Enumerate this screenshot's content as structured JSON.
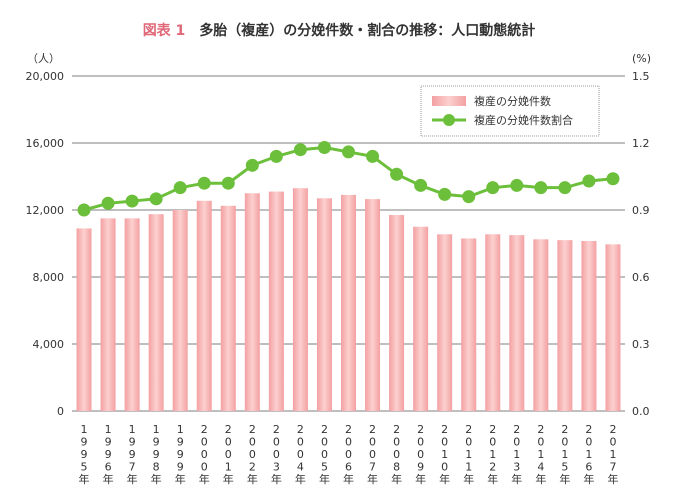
{
  "chart_data": {
    "type": "bar+line",
    "title_prefix": "図表 1",
    "title": "多胎（複産）の分娩件数・割合の推移：人口動態統計",
    "y_left_unit": "（人）",
    "y_right_unit": "(%)",
    "ylim_left": [
      0,
      20000
    ],
    "ylim_right": [
      0,
      1.5
    ],
    "y_left_ticks": [
      "0",
      "4,000",
      "8,000",
      "12,000",
      "16,000",
      "20,000"
    ],
    "y_right_ticks": [
      "0.0",
      "0.3",
      "0.6",
      "0.9",
      "1.2",
      "1.5"
    ],
    "grid": true,
    "legend_position": "top-right",
    "categories": [
      "1995年",
      "1996年",
      "1997年",
      "1998年",
      "1999年",
      "2000年",
      "2001年",
      "2002年",
      "2003年",
      "2004年",
      "2005年",
      "2006年",
      "2007年",
      "2008年",
      "2009年",
      "2010年",
      "2011年",
      "2012年",
      "2013年",
      "2014年",
      "2015年",
      "2016年",
      "2017年"
    ],
    "series": [
      {
        "name": "複産の分娩件数",
        "type": "bar",
        "axis": "left",
        "color": "#f4a6a6",
        "values": [
          10900,
          11500,
          11500,
          11750,
          12000,
          12550,
          12250,
          13000,
          13100,
          13300,
          12700,
          12900,
          12650,
          11700,
          11000,
          10550,
          10300,
          10550,
          10500,
          10250,
          10200,
          10150,
          9950
        ]
      },
      {
        "name": "複産の分娩件数割合",
        "type": "line",
        "axis": "right",
        "color": "#6cbf3a",
        "values": [
          0.9,
          0.93,
          0.94,
          0.95,
          1.0,
          1.02,
          1.02,
          1.1,
          1.14,
          1.17,
          1.18,
          1.16,
          1.14,
          1.06,
          1.01,
          0.97,
          0.96,
          1.0,
          1.01,
          1.0,
          1.0,
          1.03,
          1.04
        ]
      }
    ]
  }
}
